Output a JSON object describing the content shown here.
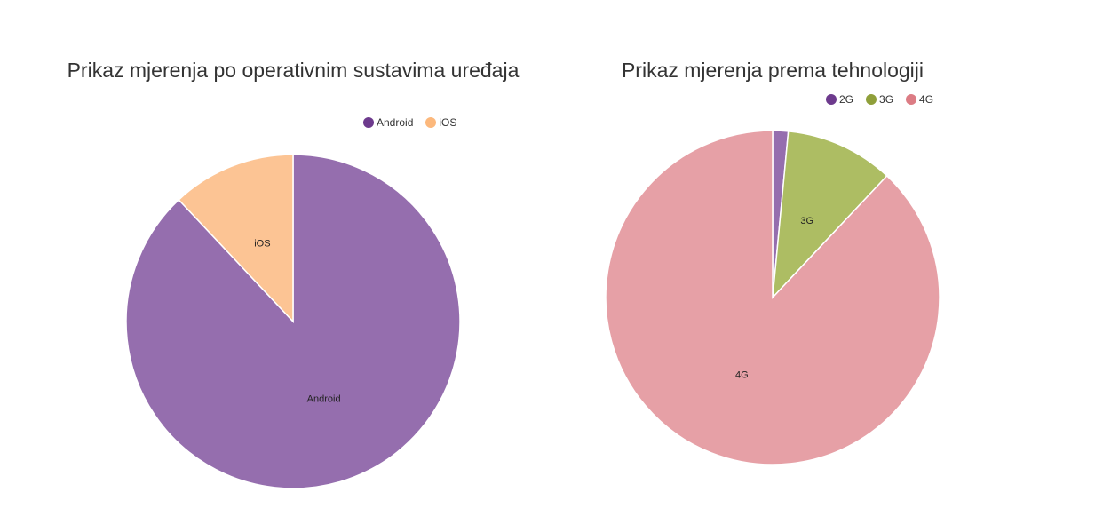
{
  "chart_data": [
    {
      "type": "pie",
      "title": "Prikaz mjerenja po operativnim sustavima uređaja",
      "legend": "top-right",
      "categories": [
        "Android",
        "iOS"
      ],
      "values": [
        88,
        12
      ],
      "colors": [
        "#956eae",
        "#fcc494"
      ],
      "legend_colors": [
        "#6d3a8d",
        "#fcb87c"
      ]
    },
    {
      "type": "pie",
      "title": "Prikaz mjerenja prema tehnologiji",
      "legend": "top-right",
      "categories": [
        "2G",
        "3G",
        "4G"
      ],
      "values": [
        1.5,
        10.5,
        88
      ],
      "colors": [
        "#956eae",
        "#adbd63",
        "#e6a0a6"
      ],
      "legend_colors": [
        "#6d3a8d",
        "#8f9f3a",
        "#dc7c84"
      ]
    }
  ]
}
